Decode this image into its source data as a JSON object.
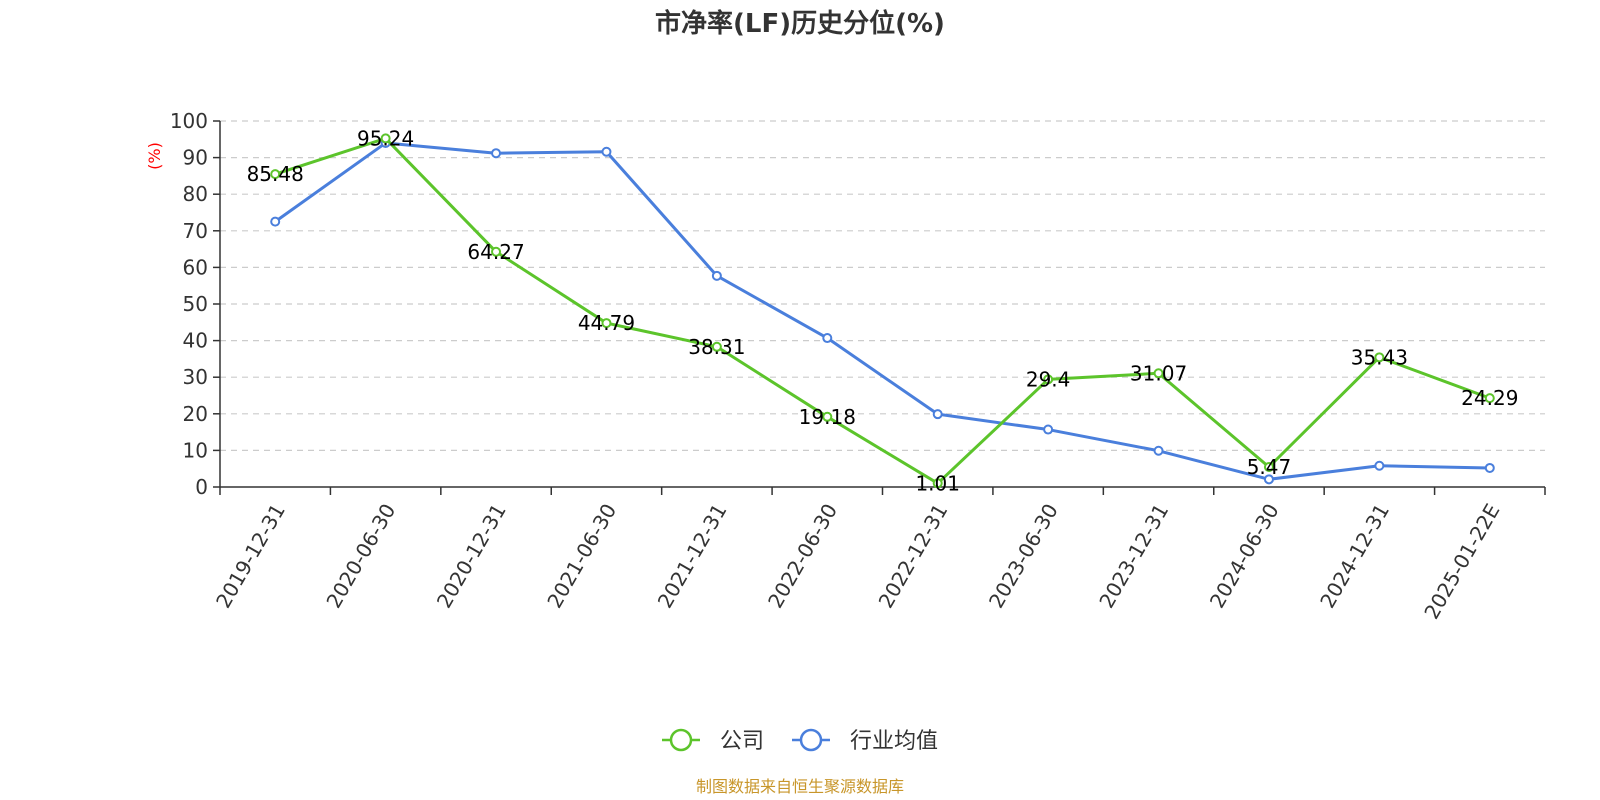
{
  "chart_data": {
    "type": "line",
    "title": "市净率(LF)历史分位(%)",
    "ylabel": "(%)",
    "xlabel": "",
    "ylim": [
      0,
      100
    ],
    "yticks": [
      0,
      10,
      20,
      30,
      40,
      50,
      60,
      70,
      80,
      90,
      100
    ],
    "grid": true,
    "legend_position": "bottom",
    "categories": [
      "2019-12-31",
      "2020-06-30",
      "2020-12-31",
      "2021-06-30",
      "2021-12-31",
      "2022-06-30",
      "2022-12-31",
      "2023-06-30",
      "2023-12-31",
      "2024-06-30",
      "2024-12-31",
      "2025-01-22E"
    ],
    "series": [
      {
        "name": "公司",
        "color": "#5cc42b",
        "values": [
          85.48,
          95.24,
          64.27,
          44.79,
          38.31,
          19.18,
          1.01,
          29.4,
          31.07,
          5.47,
          35.43,
          24.29
        ],
        "labels": [
          "85.48",
          "95.24",
          "64.27",
          "44.79",
          "38.31",
          "19.18",
          "1.01",
          "29.4",
          "31.07",
          "5.47",
          "35.43",
          "24.29"
        ]
      },
      {
        "name": "行业均值",
        "color": "#4a7fdc",
        "values": [
          72.5,
          94.0,
          91.2,
          91.6,
          57.7,
          40.7,
          19.9,
          15.7,
          9.9,
          2.1,
          5.8,
          5.2
        ]
      }
    ],
    "source": "制图数据来自恒生聚源数据库"
  }
}
